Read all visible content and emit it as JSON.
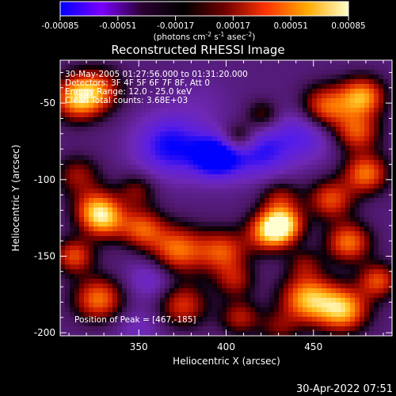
{
  "chart_data": {
    "type": "heatmap",
    "title": "Reconstructed RHESSI Image",
    "xlabel": "Heliocentric X (arcsec)",
    "ylabel": "Heliocentric Y (arcsec)",
    "xlim": [
      305,
      495
    ],
    "ylim": [
      -202,
      -22
    ],
    "xticks": [
      350,
      400,
      450
    ],
    "yticks": [
      -50,
      -100,
      -150,
      -200
    ],
    "colorbar": {
      "range": [
        -0.00085,
        0.00085
      ],
      "ticks": [
        "-0.00085",
        "-0.00051",
        "-0.00017",
        "0.00017",
        "0.00051",
        "0.00085"
      ],
      "label_parts": [
        "(photons cm",
        "-2",
        " s",
        "-1",
        " asec",
        "-2",
        ")"
      ],
      "colors": [
        "#0000ff",
        "#7a00ff",
        "#2a0030",
        "#000000",
        "#700000",
        "#ff3300",
        "#ffaa00",
        "#ffffcc"
      ]
    },
    "annotations": [
      "30-May-2005 01:27:56.000 to 01:31:20.000",
      "Detectors: 3F 4F 5F 6F 7F 8F, Att 0",
      "Energy Range: 12.0 - 25.0 keV",
      "Clean     Total counts: 3.68E+03"
    ],
    "peak_label": "Position of Peak = [467,-185]",
    "features": [
      {
        "x": 315,
        "y": -47,
        "v": 0.0008,
        "s": 10
      },
      {
        "x": 327,
        "y": -41,
        "v": 0.0005,
        "s": 10
      },
      {
        "x": 386,
        "y": -48,
        "v": -0.0001,
        "s": 12
      },
      {
        "x": 368,
        "y": -78,
        "v": -0.0006,
        "s": 14
      },
      {
        "x": 395,
        "y": -85,
        "v": -0.0008,
        "s": 10
      },
      {
        "x": 420,
        "y": -82,
        "v": -0.0005,
        "s": 12
      },
      {
        "x": 445,
        "y": -70,
        "v": -0.0004,
        "s": 12
      },
      {
        "x": 407,
        "y": -73,
        "v": 0.0005,
        "s": 7
      },
      {
        "x": 421,
        "y": -58,
        "v": 0.00035,
        "s": 7
      },
      {
        "x": 457,
        "y": -53,
        "v": 0.0007,
        "s": 10
      },
      {
        "x": 478,
        "y": -46,
        "v": 0.0008,
        "s": 9
      },
      {
        "x": 475,
        "y": -69,
        "v": 0.0006,
        "s": 9
      },
      {
        "x": 480,
        "y": -96,
        "v": 0.0007,
        "s": 9
      },
      {
        "x": 315,
        "y": -97,
        "v": 0.0004,
        "s": 9
      },
      {
        "x": 325,
        "y": -118,
        "v": 0.0005,
        "s": 9
      },
      {
        "x": 349,
        "y": -107,
        "v": 0.00035,
        "s": 8
      },
      {
        "x": 431,
        "y": -112,
        "v": 0.0004,
        "s": 8
      },
      {
        "x": 460,
        "y": -113,
        "v": 0.0006,
        "s": 9
      },
      {
        "x": 330,
        "y": -126,
        "v": 0.0007,
        "s": 9
      },
      {
        "x": 313,
        "y": -150,
        "v": 0.0006,
        "s": 8
      },
      {
        "x": 352,
        "y": -132,
        "v": 0.0006,
        "s": 9
      },
      {
        "x": 372,
        "y": -146,
        "v": 0.0007,
        "s": 11
      },
      {
        "x": 398,
        "y": -147,
        "v": 0.0006,
        "s": 10
      },
      {
        "x": 425,
        "y": -134,
        "v": 0.0008,
        "s": 9
      },
      {
        "x": 433,
        "y": -129,
        "v": 0.00075,
        "s": 8
      },
      {
        "x": 470,
        "y": -141,
        "v": 0.0007,
        "s": 9
      },
      {
        "x": 405,
        "y": -166,
        "v": 0.0004,
        "s": 8
      },
      {
        "x": 445,
        "y": -155,
        "v": 0.0003,
        "s": 7
      },
      {
        "x": 327,
        "y": -178,
        "v": 0.0007,
        "s": 10
      },
      {
        "x": 357,
        "y": -165,
        "v": -0.0003,
        "s": 10
      },
      {
        "x": 375,
        "y": -182,
        "v": 0.00055,
        "s": 10
      },
      {
        "x": 408,
        "y": -190,
        "v": 0.00045,
        "s": 8
      },
      {
        "x": 447,
        "y": -178,
        "v": 0.00085,
        "s": 11
      },
      {
        "x": 467,
        "y": -185,
        "v": 0.00085,
        "s": 10
      },
      {
        "x": 487,
        "y": -166,
        "v": 0.0006,
        "s": 8
      },
      {
        "x": 430,
        "y": -197,
        "v": 0.0003,
        "s": 8
      },
      {
        "x": 350,
        "y": -198,
        "v": -0.0002,
        "s": 10
      }
    ]
  },
  "footer": {
    "timestamp": "30-Apr-2022 07:51"
  }
}
